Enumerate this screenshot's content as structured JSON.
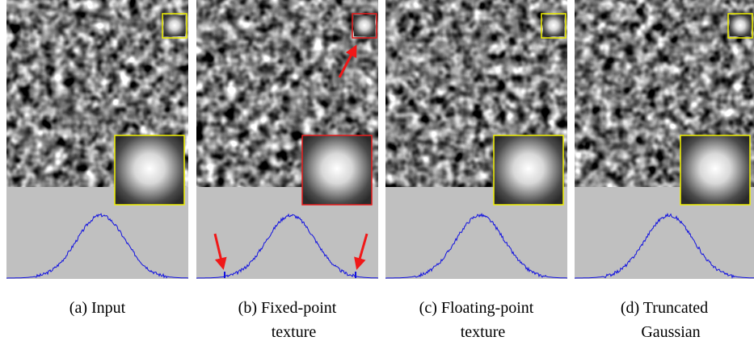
{
  "panels": [
    {
      "caption": [
        "(a) Input"
      ]
    },
    {
      "caption": [
        "(b) Fixed-point",
        "texture"
      ]
    },
    {
      "caption": [
        "(c) Floating-point",
        "texture"
      ]
    },
    {
      "caption": [
        "(d) Truncated",
        "Gaussian"
      ]
    }
  ]
}
